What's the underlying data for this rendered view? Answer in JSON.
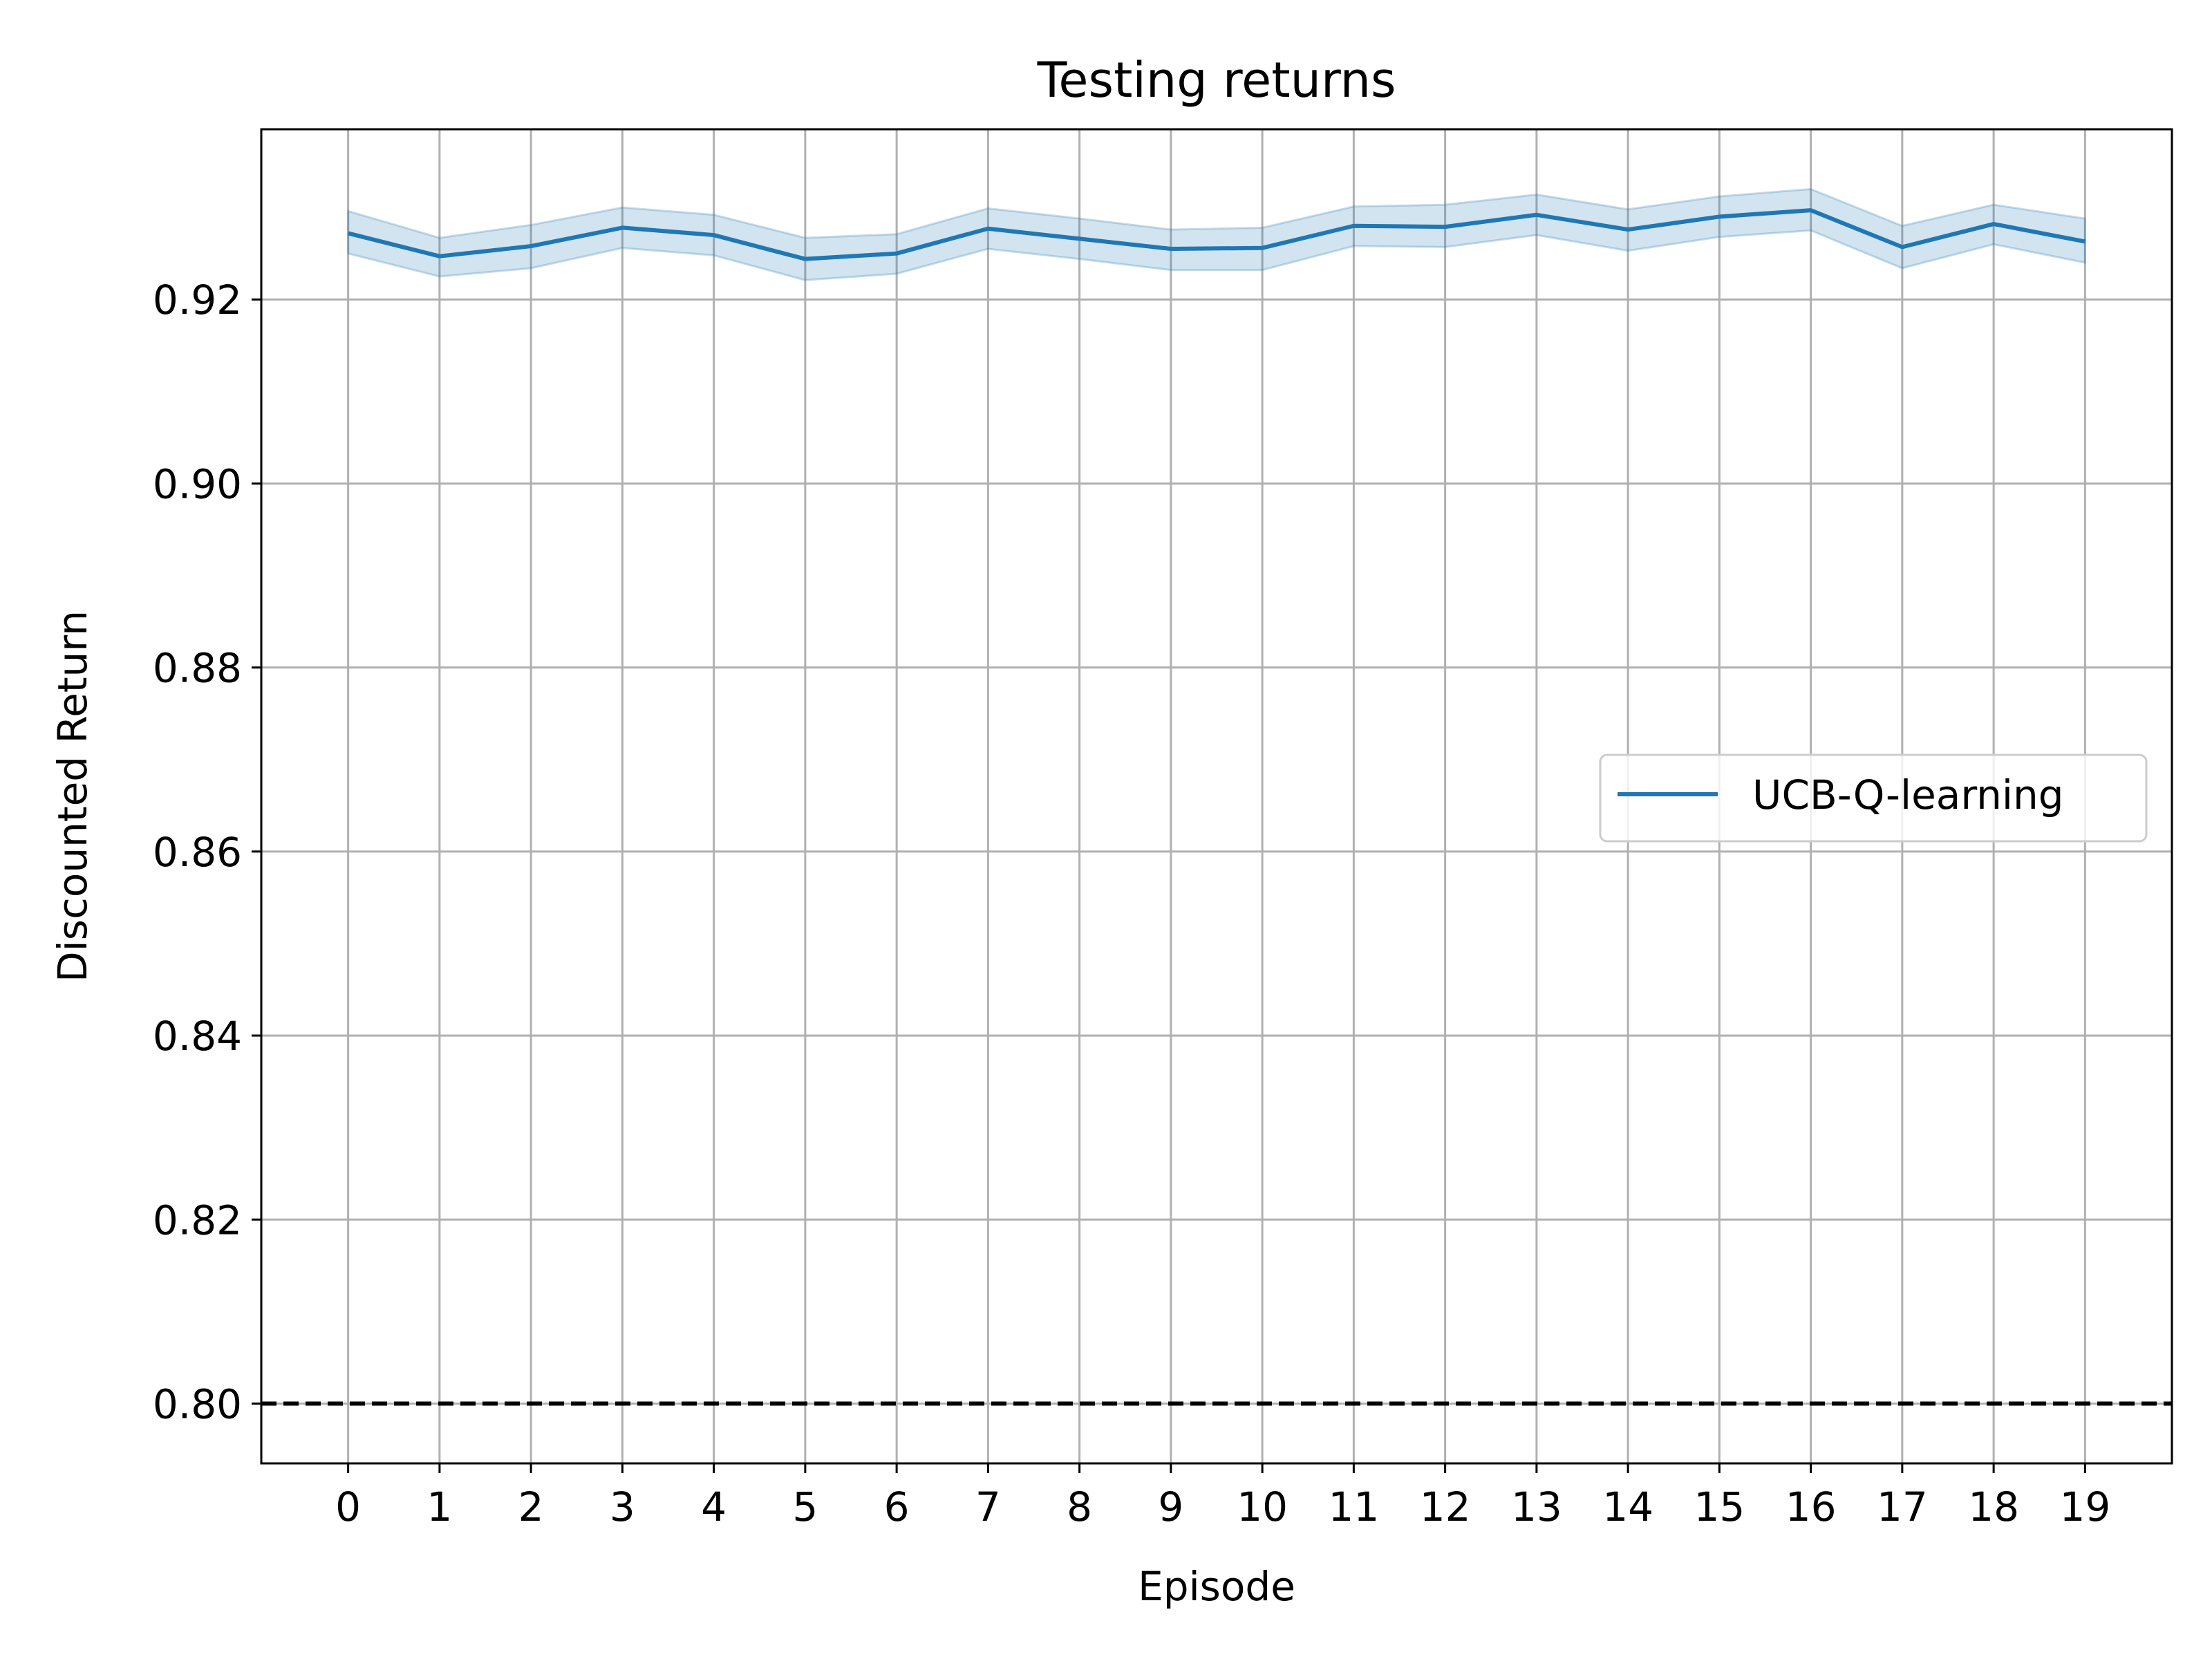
{
  "chart_data": {
    "type": "line",
    "title": "Testing returns",
    "xlabel": "Episode",
    "ylabel": "Discounted Return",
    "x": [
      0,
      1,
      2,
      3,
      4,
      5,
      6,
      7,
      8,
      9,
      10,
      11,
      12,
      13,
      14,
      15,
      16,
      17,
      18,
      19
    ],
    "xlim": [
      -0.95,
      19.95
    ],
    "ylim": [
      0.7935,
      0.9385
    ],
    "yticks": [
      0.8,
      0.82,
      0.84,
      0.86,
      0.88,
      0.9,
      0.92
    ],
    "ytick_labels": [
      "0.80",
      "0.82",
      "0.84",
      "0.86",
      "0.88",
      "0.90",
      "0.92"
    ],
    "series": [
      {
        "name": "UCB-Q-learning",
        "color": "#1f77b4",
        "values": [
          0.9272,
          0.9247,
          0.9258,
          0.9278,
          0.927,
          0.9244,
          0.925,
          0.9277,
          0.9266,
          0.9255,
          0.9256,
          0.928,
          0.9279,
          0.9292,
          0.9276,
          0.929,
          0.9297,
          0.9257,
          0.9282,
          0.9263
        ],
        "band_lower": [
          0.925,
          0.9225,
          0.9234,
          0.9256,
          0.9248,
          0.9221,
          0.9228,
          0.9255,
          0.9244,
          0.9232,
          0.9232,
          0.9258,
          0.9257,
          0.927,
          0.9253,
          0.9268,
          0.9275,
          0.9234,
          0.926,
          0.924
        ],
        "band_upper": [
          0.9296,
          0.9267,
          0.9281,
          0.93,
          0.9292,
          0.9267,
          0.9271,
          0.9299,
          0.9288,
          0.9276,
          0.9278,
          0.9301,
          0.9303,
          0.9314,
          0.9298,
          0.9312,
          0.932,
          0.928,
          0.9303,
          0.9288
        ],
        "band_color": "#1f77b4"
      }
    ],
    "reference_line": {
      "y": 0.8,
      "color": "#000000",
      "style": "dashed"
    },
    "grid": true,
    "legend": {
      "position": "center-right",
      "entries": [
        "UCB-Q-learning"
      ]
    }
  }
}
